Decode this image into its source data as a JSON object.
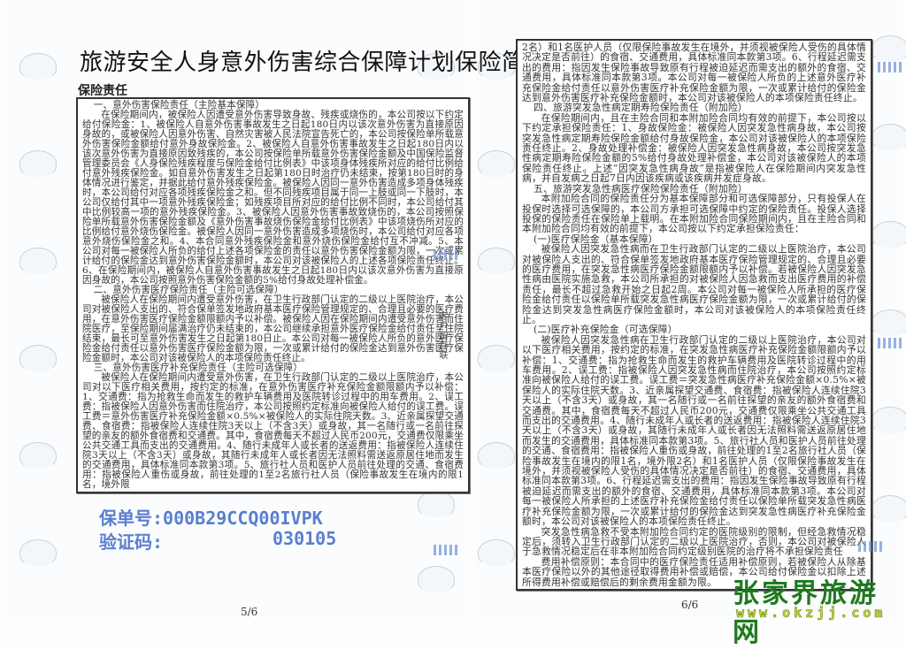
{
  "left_page": {
    "title": "旅游安全人身意外伤害综合保障计划保险简介",
    "section": "保险责任",
    "paragraphs": [
      {
        "heading": true,
        "text": "一、意外伤害保险责任（主险基本保障）"
      },
      {
        "heading": false,
        "text": "在保险期间内，被保险人因遭受意外伤害导致身故、残疾或烧伤的，本公司按以下约定给付保险金：1、被保险人自意外伤害事故发生之日起180日内以该次意外伤害为直接原因身故的，或被保险人因意外伤害、自然灾害被人民法院宣告死亡的，本公司按保险单所载意外伤害保险金额给付意外身故保险金。2、被保险人自意外伤害事故发生之日起180日内以该次意外伤害为直接原因致残疾的，本公司按保险单所载意外伤害保险金额及中国保险监督管理委员会《人身保险残疾程度与保险金给付比例表》中该项身体残疾所对应的给付比例给付意外残疾保险金。如自意外伤害发生之日起第180日时治疗仍未结束，按第180日时的身体情况进行鉴定，并据此给付意外残疾保险金。被保险人因同一意外伤害造成多项身体残疾时，本公司给付对应各项残疾保险金之和。但不同残疾项目属于同一上肢或同一下肢时，本公司仅给付其中一项意外残疾保险金；如残疾项目所对应的给付比例不同时，本公司给付其中比例较高一项的意外残疾保险金。3、被保险人因意外伤害事故致烧伤的，本公司按照保险单所载意外伤害保险金额及《意外伤害事故烧伤保险金给付比例表》中该项烧伤所对应的比例给付意外烧伤保险金。被保险人因同一意外伤害造成多项烧伤时，本公司给付对应各项意外烧伤保险金之和。4、本合同意外残疾保险金和意外烧伤保险金给付互不冲减。5、本公司对每一被保险人所负的给付上述各项保险金的责任以意外伤害保险金额为限，一次或累计给付的保险金达到意外伤害保险金额时，本公司对该被保险人的上述各项保险责任终止。6、在保险期间内，被保险人自意外伤害事故发生之日起180日内以该次意外伤害为直接原因身故的，本公司按照意外伤害保险金额的5%给付身故处理补偿金。"
      },
      {
        "heading": true,
        "text": "二、意外伤害医疗保险责任（主险可选保障）"
      },
      {
        "heading": false,
        "text": "被保险人在保险期间内遭受意外伤害，在卫生行政部门认定的二级以上医院治疗，本公司对被保险人支出的、符合保单签发地政府基本医疗保险管理规定的、合理且必要的医疗费用，在意外伤害医疗保险金额限额内予以补偿。被保险人因在保险期间内遭受意外伤害而住院医疗，至保险期间届满治疗仍未结束的，本公司继续承担意外医疗保险金给付责任至住院结束，最长可至意外伤害发生之日起第180日止。本公司对每一被保险人所负的意外医疗保险金给付责任以意外伤害医疗保险金额为限，一次或累计给付的保险金达到意外伤害医疗保险金额时，本公司对该被保险人的本项保险责任终止。"
      },
      {
        "heading": true,
        "text": "三、意外伤害医疗补充保险责任（主险可选保障）"
      },
      {
        "heading": false,
        "text": "被保险人在保险期间内遭受意外伤害，在卫生行政部门认定的二级以上医院治疗，本公司对以下医疗相关费用，按约定的标准，在意外伤害医疗补充保险金额限额内予以补偿：1、交通费：指为抢救生命而发生的救护车辆费用及医院转诊过程中的用车费用。2、误工费：指被保险人因意外伤害而住院治疗，本公司按照约定标准向被保险人给付的误工费。误工费＝意外伤害医疗补充保险金额×0.5%×被保险人的实际住院天数。3、近亲属探望交通费、食宿费：指被保险人连续住院3天以上（不含3天）或身故，其一名随行或一名前往探望的亲友的额外食宿费和交通费。其中，食宿费每天不超过人民币200元，交通费仅限乘坐公共交通工具而支出的交通费用。4、随行未成年人或长者的送返费用：指被保险人连续住院3天以上（不含3天）或身故，其随行未成年人或长者因无法照料需送返原居住地而发生的交通费用，具体标准同本款第3项。5、旅行社人员和医护人员前往处理的交通、食宿费用：指被保险人重伤或身故，前往处理的1至2名旅行社人员（保险事故发生在境内的限1名，境外限"
      }
    ],
    "policy_number_label": "保单号:",
    "policy_number": "000B29CCQ00IVPK",
    "verification_code_label": "验证码:",
    "verification_code": "030105",
    "page_number": "5/6",
    "side_label": "客户留存联"
  },
  "right_page": {
    "paragraphs": [
      {
        "heading": false,
        "indent": false,
        "text": "2名）和1名医护人员（仅限保险事故发生在境外，并须视被保险人受伤的具体情况决定是否前往）的食宿、交通费用，具体标准同本款第3项。6、行程延迟需支出的费用：指因发生保险事故导致原有行程被迫延迟而需支出的额外的食宿、交通费用，具体标准同本款第3项。本公司对每一被保险人所负的上述意外医疗补充保险金给付责任以意外伤害医疗补充保险金额为限，一次或累计给付的保险金达到意外伤害医疗补充保险金额时，本公司对该被保险人的本项保险责任终止。"
      },
      {
        "heading": true,
        "text": "四、旅游突发急性病定期寿险保险责任（附加险）"
      },
      {
        "heading": false,
        "text": "在保险期间内，且在主险合同和本附加险合同均有效的前提下，本公司按以下约定承担保险责任：1、身故保险金：被保险人因突发急性病身故，本公司按突发急性病定期寿险保险金额给付身故保险金，本公司对该被保险人的本项保险责任终止。2、身故处理补偿金：被保险人因突发急性病身故，本公司按突发急性病定期寿险保险金额的5%给付身故处理补偿金，本公司对该被保险人的本项保险责任终止。上述“因突发急性病身故”是指被保险人在保险期间内突发急性病，并自发病之日起7日内因该疾病或该疾病并发症身故。"
      },
      {
        "heading": true,
        "text": "五、旅游突发急性病医疗保险保险责任（附加险）"
      },
      {
        "heading": false,
        "text": "本附加险合同的保险责任分为基本保障部分和可选保障部分，只有投保人在投保时选择可选保障的，本公司方承担可选保障中约定的保险责任。投保人选择投保的保险责任在保险单上载明。在本附加险合同保险期间内，且在主险合同和本附加险合同均有效的前提下，本公司按以下约定承担保险责任："
      },
      {
        "heading": true,
        "text": "(一)医疗保险金（基本保障）"
      },
      {
        "heading": false,
        "text": "被保险人因突发急性病而在卫生行政部门认定的二级以上医院治疗，本公司对被保险人支出的、符合保单签发地政府基本医疗保险管理规定的、合理且必要的医疗费用，在突发急性病医疗保险金额限额内予以补偿。若被保险人因突发急性病由医院实施急救，本公司所承担的对被保险人因急救而支出医疗费用的补偿责任，最长不超过急救开始之日起2周。本公司对每一被保险人所承担的医疗保险金给付责任以保险单所载突发急性病医疗保险金额为限，一次或累计给付的保险金达到突发急性病医疗保险金额时，本公司对该被保险人的本项保险责任终止。"
      },
      {
        "heading": true,
        "text": "(二)医疗补充保险金（可选保障）"
      },
      {
        "heading": false,
        "text": "被保险人因突发急性病在卫生行政部门认定的二级以上医院治疗，本公司对以下医疗相关费用，按约定的标准，在突发急性病医疗补充保险金额限额内予以补偿：1、交通费：指为抢救生命而发生的救护车辆费用及医院转诊过程中的用车费用。2、误工费：指被保险人因突发急性病而住院治疗，本公司按照约定标准向被保险人给付的误工费。误工费＝突发急性病医疗补充保险金额×0.5%×被保险人的实际住院天数。3、近亲属探望交通费、食宿费：指被保险人连续住院3天以上（不含3天）或身故，其一名随行或一名前往探望的亲友的额外食宿费和交通费。其中，食宿费每天不超过人民币200元，交通费仅限乘坐公共交通工具而支出的交通费用。4、随行未成年人或长者的送返费用：指被保险人连续住院3天以上（不含3天）或身故，其随行未成年人或长者因无法照料需送返原居住地而发生的交通费用，具体标准同本款第3项。5、旅行社人员和医护人员前往处理的交通、食宿费用：指被保险人重伤或身故，前往处理的1至2名旅行社人员（保险事故发生在境内的限1名，境外限2名）和1名医护人员（仅限保险事故发生在境外，并须视被保险人受伤的具体情况决定是否前往）的食宿、交通费用，具体标准同本款第3项。6、行程延迟需支出的费用：指因发生保险事故导致原有行程被迫延迟而需支出的额外的食宿、交通费用，具体标准同本款第3项。本公司对每一被保险人所承担的上述医疗补充保险金给付责任以保险单所载突发急性病医疗补充保险金额为限，一次或累计给付的保险金达到突发急性病医疗补充保险金额时，本公司对该被保险人的本项保险责任终止。"
      },
      {
        "heading": false,
        "text": "突发急性病急救不受本附加险合同约定的医院级别的限制，但经急救情况稳定后，须转入卫生行政部门认定的二级以上医院治疗，否则，本公司对被保险人于急救情况稳定后在非本附加险合同约定级别医院的治疗将不承担保险责任"
      },
      {
        "heading": false,
        "text": "费用补偿原则：本合同中的医疗保险责任适用补偿原则，若被保险人从除基本医疗保险以外的其他途径取得费用补偿或赔偿，本公司给付保险金以扣除上述所得费用补偿或赔偿后的剩余费用金额为限。"
      }
    ],
    "page_number": "6/6"
  },
  "watermark": {
    "site_name": "张家界旅游网",
    "url": "www.okzjj.com"
  },
  "colors": {
    "stamp_blue": "#5a7fd0",
    "watermark_green": "#1f7a1f",
    "watermark_url": "#c9d84a"
  }
}
